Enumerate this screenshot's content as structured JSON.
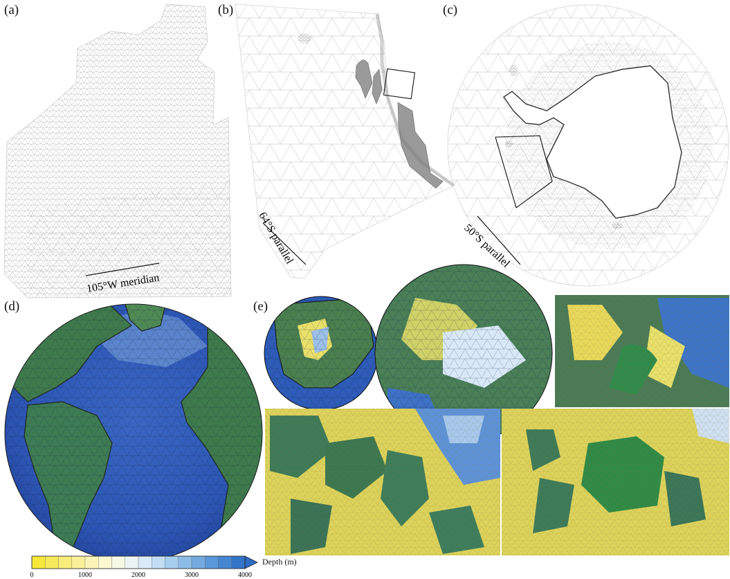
{
  "panels": {
    "a": {
      "label": "(a)",
      "annotation": "105°W meridian"
    },
    "b": {
      "label": "(b)",
      "annotation": "64°S parallel"
    },
    "c": {
      "label": "(c)",
      "annotation": "50°S parallel"
    },
    "d": {
      "label": "(d)"
    },
    "e": {
      "label": "(e)"
    }
  },
  "colorbar": {
    "title": "Depth (m)",
    "ticks": [
      "0",
      "1000",
      "2000",
      "3000",
      "4000"
    ],
    "min": 0,
    "max": 4000,
    "colors": [
      "#f5e52a",
      "#f7eb6a",
      "#faf2a8",
      "#fdfbe0",
      "#e6f1fa",
      "#b6d6f1",
      "#7fb4e4",
      "#4d8fd5",
      "#2b6cc4"
    ]
  }
}
